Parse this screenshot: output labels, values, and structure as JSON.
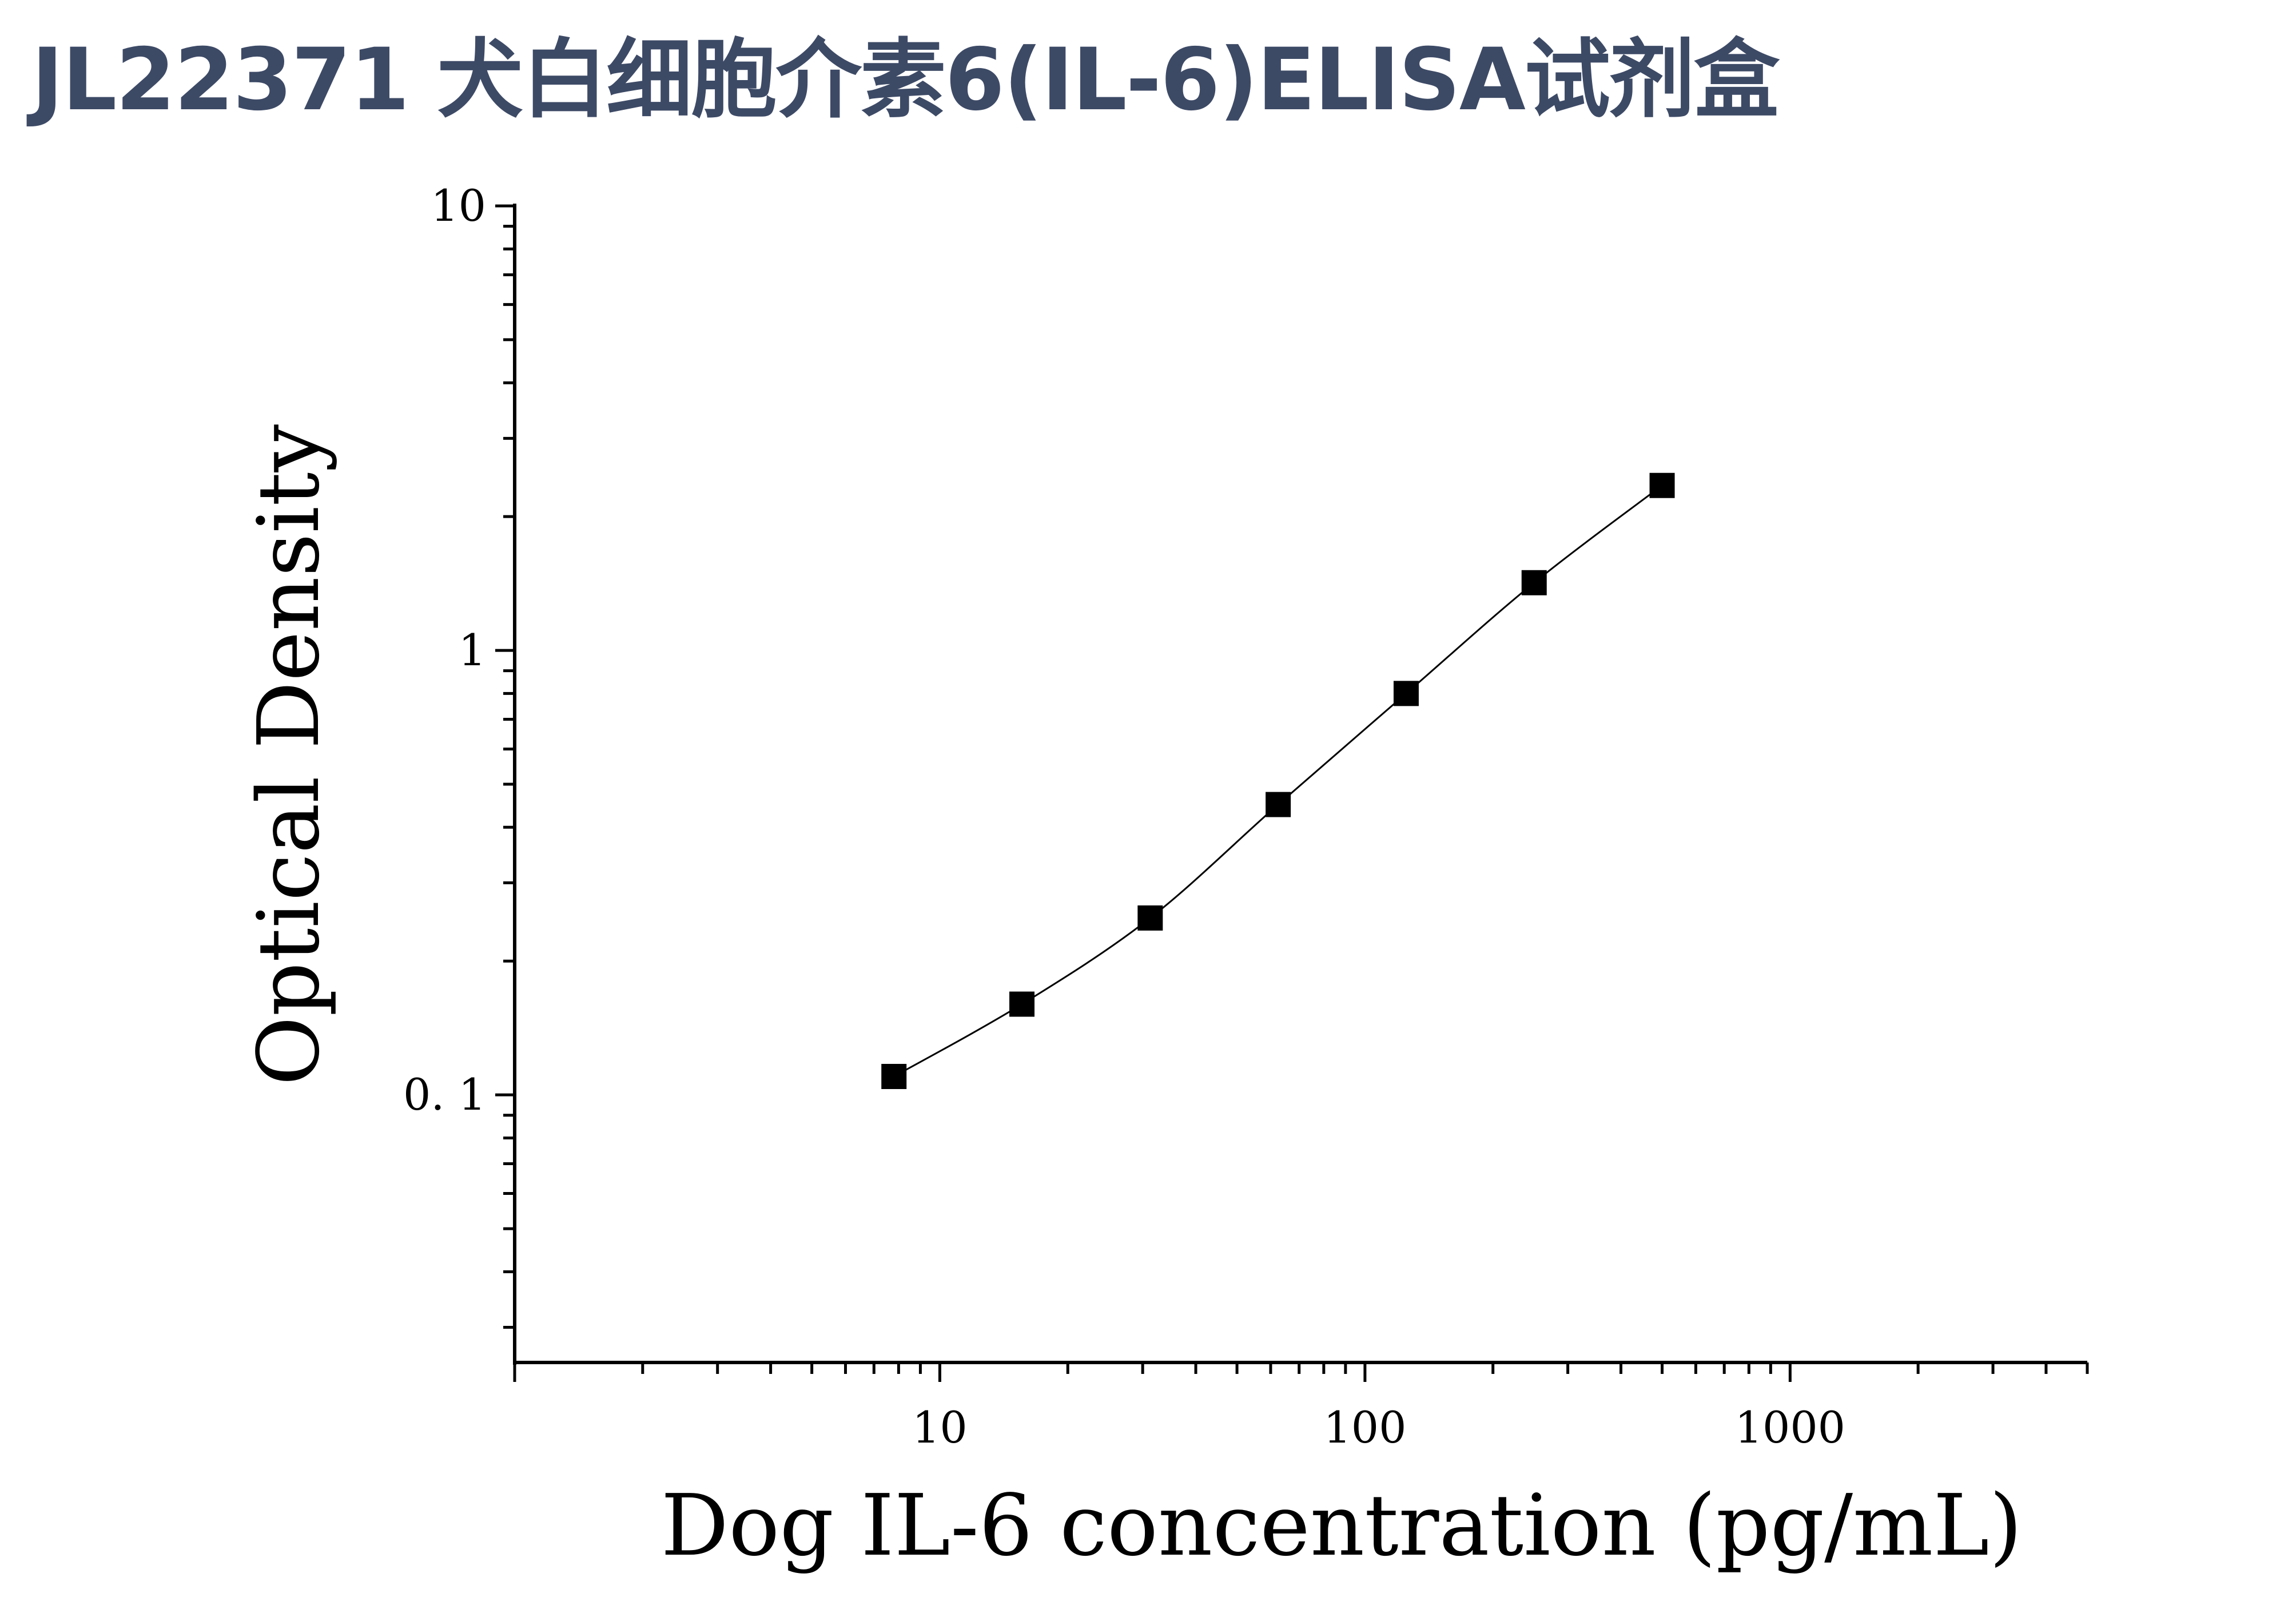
{
  "title": "JL22371 犬白细胞介素6(IL-6)ELISA试剂盒",
  "colors": {
    "title": "#3d4a66",
    "axis": "#000000",
    "marker": "#000000",
    "line": "#000000"
  },
  "chart_data": {
    "type": "scatter",
    "title": "JL22371 犬白细胞介素6(IL-6)ELISA试剂盒",
    "xlabel": "Dog IL-6 concentration (pg/mL)",
    "ylabel": "Optical Density",
    "xscale": "log",
    "yscale": "log",
    "xlim": [
      1,
      5000
    ],
    "ylim": [
      0.025,
      10
    ],
    "xticks": [
      {
        "value": 10,
        "label": "10"
      },
      {
        "value": 100,
        "label": "100"
      },
      {
        "value": 1000,
        "label": "1000"
      }
    ],
    "yticks": [
      {
        "value": 0.1,
        "label": "0. 1"
      },
      {
        "value": 1,
        "label": "1"
      },
      {
        "value": 10,
        "label": "10"
      }
    ],
    "grid": false,
    "legend": "none",
    "series": [
      {
        "marker": "square",
        "fit_line": true,
        "x": [
          7.8,
          15.6,
          31.25,
          62.5,
          125,
          250,
          500
        ],
        "y": [
          0.11,
          0.16,
          0.25,
          0.45,
          0.8,
          1.42,
          2.35
        ]
      }
    ]
  }
}
